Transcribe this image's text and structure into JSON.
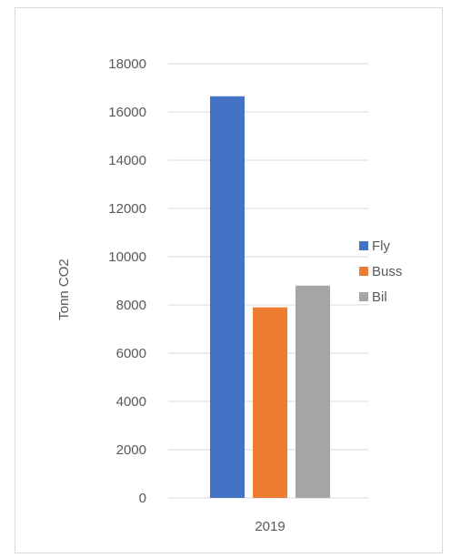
{
  "chart_data": {
    "type": "bar",
    "categories": [
      "2019"
    ],
    "series": [
      {
        "name": "Fly",
        "values": [
          16650
        ],
        "color": "#4472C4"
      },
      {
        "name": "Buss",
        "values": [
          7900
        ],
        "color": "#ED7D31"
      },
      {
        "name": "Bil",
        "values": [
          8800
        ],
        "color": "#A5A5A5"
      }
    ],
    "ylabel": "Tonn CO2",
    "ylim": [
      0,
      18000
    ],
    "yticks": [
      0,
      2000,
      4000,
      6000,
      8000,
      10000,
      12000,
      14000,
      16000,
      18000
    ],
    "grid": true,
    "legend": "right"
  }
}
